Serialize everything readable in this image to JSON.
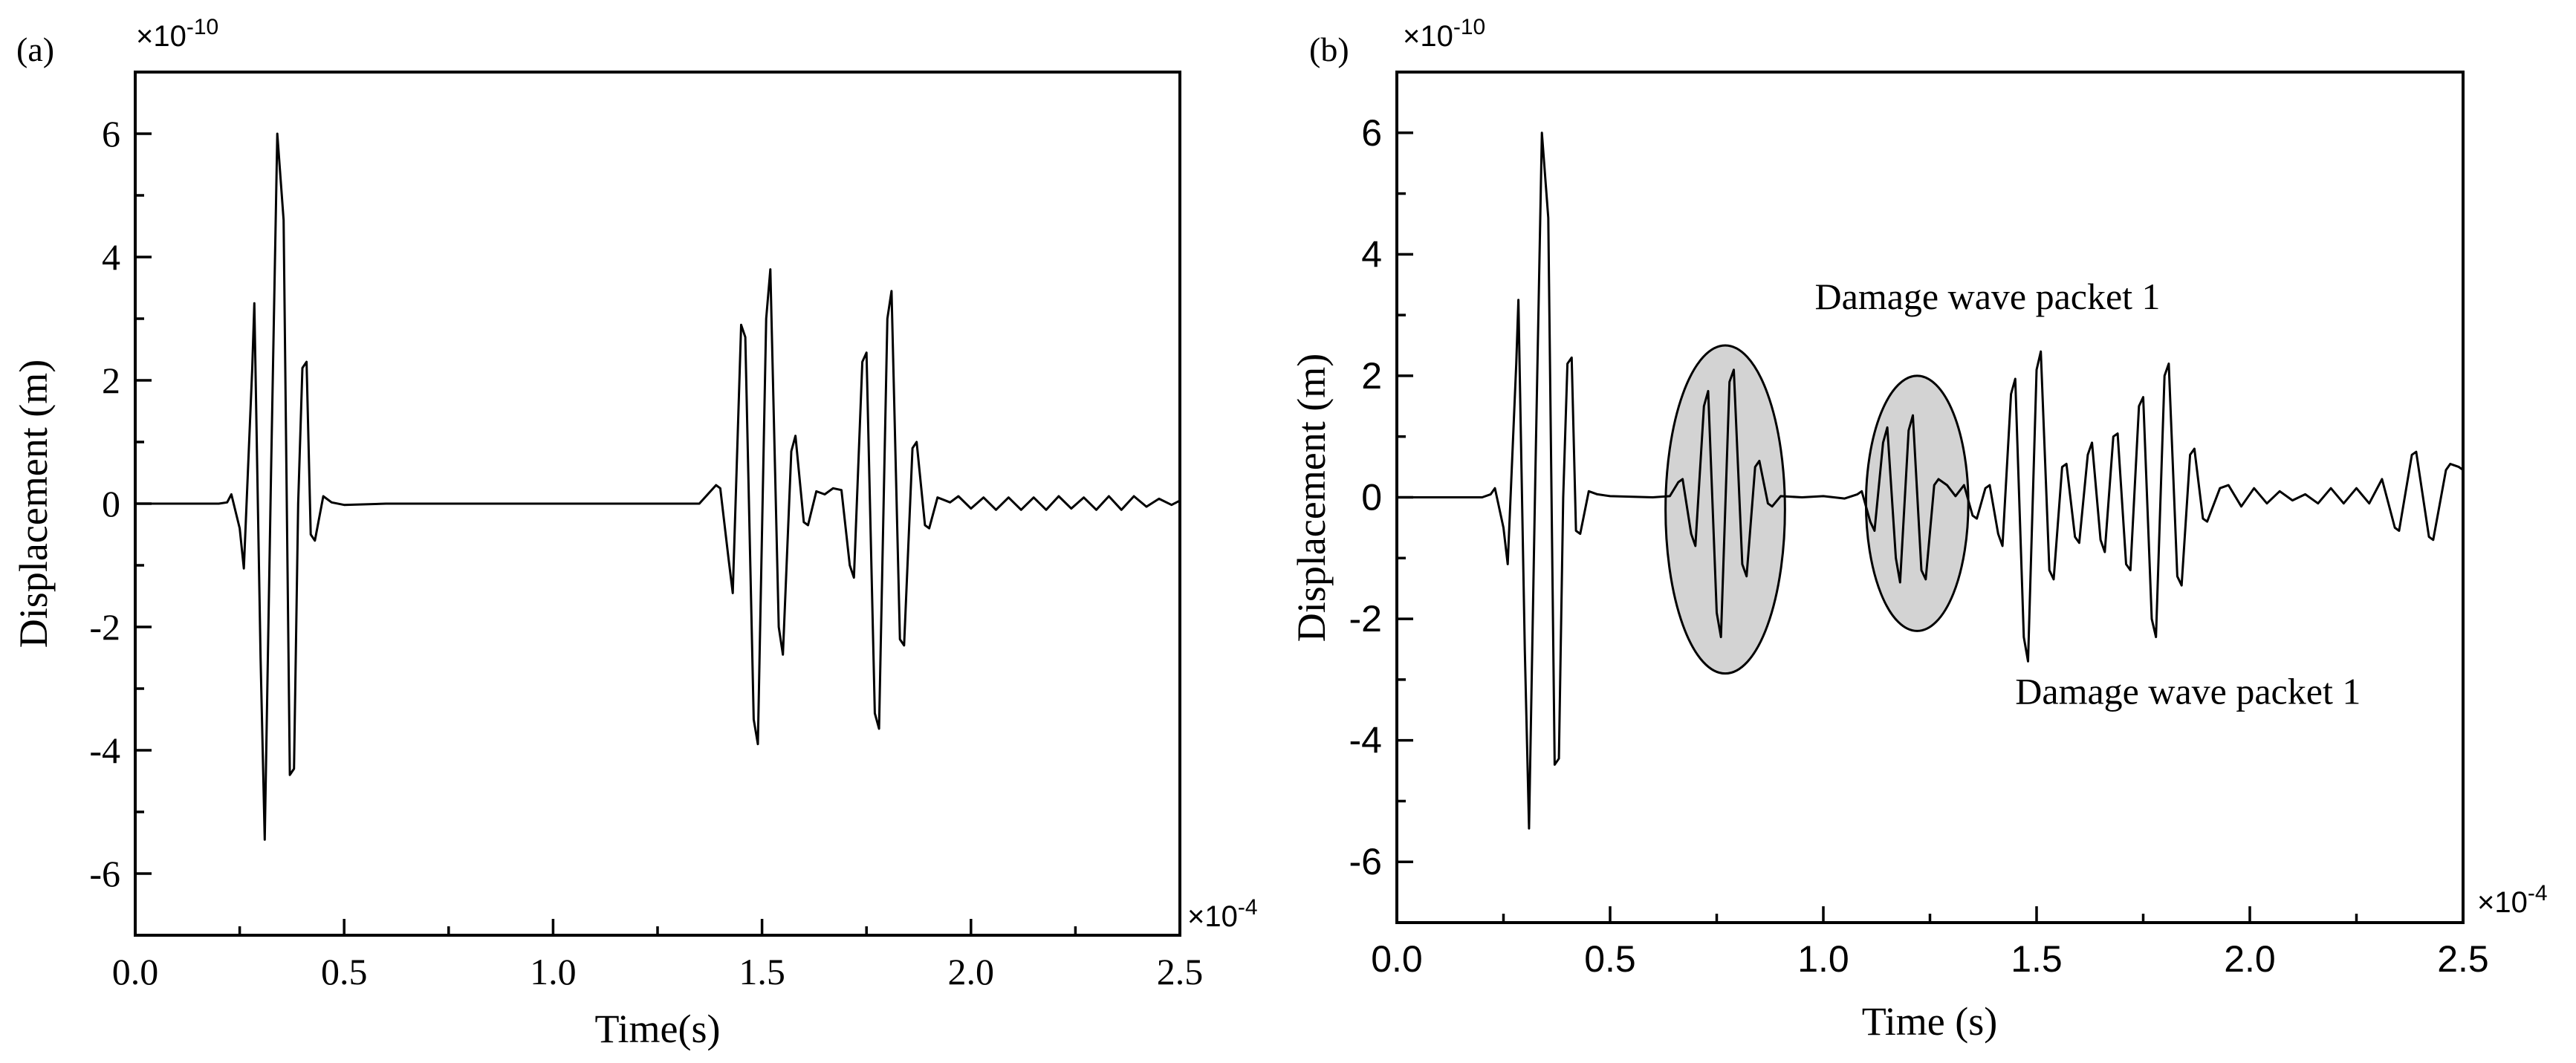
{
  "figure": {
    "panel_labels": [
      "(a)",
      "(b)"
    ],
    "y_multiplier_base": "×10",
    "y_multiplier_exp": "-10",
    "x_multiplier_base": "×10",
    "x_multiplier_exp": "-4"
  },
  "chart_data": [
    {
      "panel": "(a)",
      "type": "line",
      "title": "",
      "xlabel": "Time(s)",
      "ylabel": "Displacement (m)",
      "xlim": [
        0,
        2.5
      ],
      "ylim": [
        -7,
        7
      ],
      "x_unit_scale": "×10^-4",
      "y_unit_scale": "×10^-10",
      "xticks": [
        0.0,
        0.5,
        1.0,
        1.5,
        2.0,
        2.5
      ],
      "xtick_labels": [
        "0.0",
        "0.5",
        "1.0",
        "1.5",
        "2.0",
        "2.5"
      ],
      "yticks": [
        -6,
        -4,
        -2,
        0,
        2,
        4,
        6
      ],
      "ytick_labels": [
        "-6",
        "-4",
        "-2",
        "0",
        "2",
        "4",
        "6"
      ],
      "series": [
        {
          "name": "displacement",
          "points": [
            [
              0,
              0
            ],
            [
              0.2,
              0
            ],
            [
              0.22,
              0.02
            ],
            [
              0.23,
              0.15
            ],
            [
              0.25,
              -0.4
            ],
            [
              0.26,
              -1.05
            ],
            [
              0.28,
              2.2
            ],
            [
              0.285,
              3.25
            ],
            [
              0.3,
              -2.5
            ],
            [
              0.31,
              -5.45
            ],
            [
              0.325,
              0.5
            ],
            [
              0.34,
              6.0
            ],
            [
              0.355,
              4.6
            ],
            [
              0.37,
              -4.4
            ],
            [
              0.38,
              -4.3
            ],
            [
              0.39,
              0
            ],
            [
              0.4,
              2.2
            ],
            [
              0.41,
              2.3
            ],
            [
              0.42,
              -0.5
            ],
            [
              0.43,
              -0.6
            ],
            [
              0.45,
              0.12
            ],
            [
              0.47,
              0.02
            ],
            [
              0.5,
              -0.02
            ],
            [
              0.6,
              0
            ],
            [
              1.35,
              0
            ],
            [
              1.37,
              0.15
            ],
            [
              1.39,
              0.3
            ],
            [
              1.4,
              0.25
            ],
            [
              1.42,
              -0.9
            ],
            [
              1.43,
              -1.45
            ],
            [
              1.45,
              2.9
            ],
            [
              1.46,
              2.7
            ],
            [
              1.48,
              -3.5
            ],
            [
              1.49,
              -3.9
            ],
            [
              1.51,
              3.0
            ],
            [
              1.52,
              3.8
            ],
            [
              1.54,
              -2.0
            ],
            [
              1.55,
              -2.45
            ],
            [
              1.57,
              0.85
            ],
            [
              1.58,
              1.1
            ],
            [
              1.6,
              -0.3
            ],
            [
              1.61,
              -0.35
            ],
            [
              1.63,
              0.2
            ],
            [
              1.65,
              0.15
            ],
            [
              1.67,
              0.25
            ],
            [
              1.69,
              0.22
            ],
            [
              1.71,
              -1.0
            ],
            [
              1.72,
              -1.2
            ],
            [
              1.74,
              2.3
            ],
            [
              1.75,
              2.45
            ],
            [
              1.77,
              -3.4
            ],
            [
              1.78,
              -3.65
            ],
            [
              1.8,
              3.0
            ],
            [
              1.81,
              3.45
            ],
            [
              1.83,
              -2.2
            ],
            [
              1.84,
              -2.3
            ],
            [
              1.86,
              0.9
            ],
            [
              1.87,
              1.0
            ],
            [
              1.89,
              -0.35
            ],
            [
              1.9,
              -0.4
            ],
            [
              1.92,
              0.1
            ],
            [
              1.95,
              0.02
            ],
            [
              1.97,
              0.12
            ],
            [
              2.0,
              -0.08
            ],
            [
              2.03,
              0.1
            ],
            [
              2.06,
              -0.1
            ],
            [
              2.09,
              0.1
            ],
            [
              2.12,
              -0.1
            ],
            [
              2.15,
              0.1
            ],
            [
              2.18,
              -0.1
            ],
            [
              2.21,
              0.12
            ],
            [
              2.24,
              -0.08
            ],
            [
              2.27,
              0.1
            ],
            [
              2.3,
              -0.1
            ],
            [
              2.33,
              0.12
            ],
            [
              2.36,
              -0.1
            ],
            [
              2.39,
              0.12
            ],
            [
              2.42,
              -0.05
            ],
            [
              2.45,
              0.08
            ],
            [
              2.48,
              -0.02
            ],
            [
              2.5,
              0.05
            ]
          ]
        }
      ]
    },
    {
      "panel": "(b)",
      "type": "line",
      "title": "",
      "xlabel": "Time (s)",
      "ylabel": "Displacement (m)",
      "xlim": [
        0,
        2.5
      ],
      "ylim": [
        -7,
        7
      ],
      "x_unit_scale": "×10^-4",
      "y_unit_scale": "×10^-10",
      "xticks": [
        0.0,
        0.5,
        1.0,
        1.5,
        2.0,
        2.5
      ],
      "xtick_labels": [
        "0.0",
        "0.5",
        "1.0",
        "1.5",
        "2.0",
        "2.5"
      ],
      "yticks": [
        -6,
        -4,
        -2,
        0,
        2,
        4,
        6
      ],
      "ytick_labels": [
        "-6",
        "-4",
        "-2",
        "0",
        "2",
        "4",
        "6"
      ],
      "annotations": [
        {
          "text": "Damage wave packet 1",
          "x": 0.98,
          "y": 3.1
        },
        {
          "text": "Damage wave packet 1",
          "x": 1.45,
          "y": -3.4
        }
      ],
      "highlights": [
        {
          "label": "damage packet region 1",
          "cx": 0.77,
          "cy": -0.2,
          "rx": 0.14,
          "ry": 2.7
        },
        {
          "label": "damage packet region 2",
          "cx": 1.22,
          "cy": -0.1,
          "rx": 0.12,
          "ry": 2.1
        }
      ],
      "series": [
        {
          "name": "displacement",
          "points": [
            [
              0,
              0
            ],
            [
              0.2,
              0
            ],
            [
              0.22,
              0.05
            ],
            [
              0.23,
              0.15
            ],
            [
              0.25,
              -0.5
            ],
            [
              0.26,
              -1.1
            ],
            [
              0.28,
              2.2
            ],
            [
              0.285,
              3.25
            ],
            [
              0.3,
              -2.5
            ],
            [
              0.31,
              -5.45
            ],
            [
              0.325,
              0.5
            ],
            [
              0.34,
              6.0
            ],
            [
              0.355,
              4.6
            ],
            [
              0.37,
              -4.4
            ],
            [
              0.38,
              -4.3
            ],
            [
              0.39,
              0
            ],
            [
              0.4,
              2.2
            ],
            [
              0.41,
              2.3
            ],
            [
              0.42,
              -0.55
            ],
            [
              0.43,
              -0.6
            ],
            [
              0.45,
              0.1
            ],
            [
              0.47,
              0.05
            ],
            [
              0.5,
              0.02
            ],
            [
              0.6,
              0
            ],
            [
              0.64,
              0.02
            ],
            [
              0.66,
              0.25
            ],
            [
              0.67,
              0.3
            ],
            [
              0.69,
              -0.6
            ],
            [
              0.7,
              -0.8
            ],
            [
              0.72,
              1.5
            ],
            [
              0.73,
              1.75
            ],
            [
              0.75,
              -1.9
            ],
            [
              0.76,
              -2.3
            ],
            [
              0.78,
              1.9
            ],
            [
              0.79,
              2.1
            ],
            [
              0.81,
              -1.1
            ],
            [
              0.82,
              -1.3
            ],
            [
              0.84,
              0.5
            ],
            [
              0.85,
              0.6
            ],
            [
              0.87,
              -0.1
            ],
            [
              0.88,
              -0.15
            ],
            [
              0.9,
              0.02
            ],
            [
              0.95,
              0
            ],
            [
              1.0,
              0.02
            ],
            [
              1.05,
              -0.02
            ],
            [
              1.08,
              0.05
            ],
            [
              1.09,
              0.1
            ],
            [
              1.11,
              -0.4
            ],
            [
              1.12,
              -0.55
            ],
            [
              1.14,
              0.9
            ],
            [
              1.15,
              1.15
            ],
            [
              1.17,
              -1.0
            ],
            [
              1.18,
              -1.4
            ],
            [
              1.2,
              1.1
            ],
            [
              1.21,
              1.35
            ],
            [
              1.23,
              -1.2
            ],
            [
              1.24,
              -1.35
            ],
            [
              1.26,
              0.2
            ],
            [
              1.27,
              0.3
            ],
            [
              1.29,
              0.2
            ],
            [
              1.31,
              0.02
            ],
            [
              1.33,
              0.2
            ],
            [
              1.35,
              -0.3
            ],
            [
              1.36,
              -0.35
            ],
            [
              1.38,
              0.15
            ],
            [
              1.39,
              0.2
            ],
            [
              1.41,
              -0.6
            ],
            [
              1.42,
              -0.8
            ],
            [
              1.44,
              1.7
            ],
            [
              1.45,
              1.95
            ],
            [
              1.47,
              -2.3
            ],
            [
              1.48,
              -2.7
            ],
            [
              1.5,
              2.1
            ],
            [
              1.51,
              2.4
            ],
            [
              1.53,
              -1.2
            ],
            [
              1.54,
              -1.35
            ],
            [
              1.56,
              0.5
            ],
            [
              1.57,
              0.55
            ],
            [
              1.59,
              -0.65
            ],
            [
              1.6,
              -0.75
            ],
            [
              1.62,
              0.7
            ],
            [
              1.63,
              0.9
            ],
            [
              1.65,
              -0.7
            ],
            [
              1.66,
              -0.9
            ],
            [
              1.68,
              1.0
            ],
            [
              1.69,
              1.05
            ],
            [
              1.71,
              -1.1
            ],
            [
              1.72,
              -1.2
            ],
            [
              1.74,
              1.5
            ],
            [
              1.75,
              1.65
            ],
            [
              1.77,
              -2.0
            ],
            [
              1.78,
              -2.3
            ],
            [
              1.8,
              2.0
            ],
            [
              1.81,
              2.2
            ],
            [
              1.83,
              -1.3
            ],
            [
              1.84,
              -1.45
            ],
            [
              1.86,
              0.7
            ],
            [
              1.87,
              0.8
            ],
            [
              1.89,
              -0.35
            ],
            [
              1.9,
              -0.4
            ],
            [
              1.93,
              0.15
            ],
            [
              1.95,
              0.2
            ],
            [
              1.98,
              -0.15
            ],
            [
              2.01,
              0.15
            ],
            [
              2.04,
              -0.1
            ],
            [
              2.07,
              0.1
            ],
            [
              2.1,
              -0.05
            ],
            [
              2.13,
              0.05
            ],
            [
              2.16,
              -0.1
            ],
            [
              2.19,
              0.15
            ],
            [
              2.22,
              -0.1
            ],
            [
              2.25,
              0.15
            ],
            [
              2.28,
              -0.1
            ],
            [
              2.31,
              0.3
            ],
            [
              2.34,
              -0.5
            ],
            [
              2.35,
              -0.55
            ],
            [
              2.38,
              0.7
            ],
            [
              2.39,
              0.75
            ],
            [
              2.42,
              -0.65
            ],
            [
              2.43,
              -0.7
            ],
            [
              2.46,
              0.45
            ],
            [
              2.47,
              0.55
            ],
            [
              2.49,
              0.5
            ],
            [
              2.5,
              0.45
            ]
          ]
        }
      ]
    }
  ]
}
